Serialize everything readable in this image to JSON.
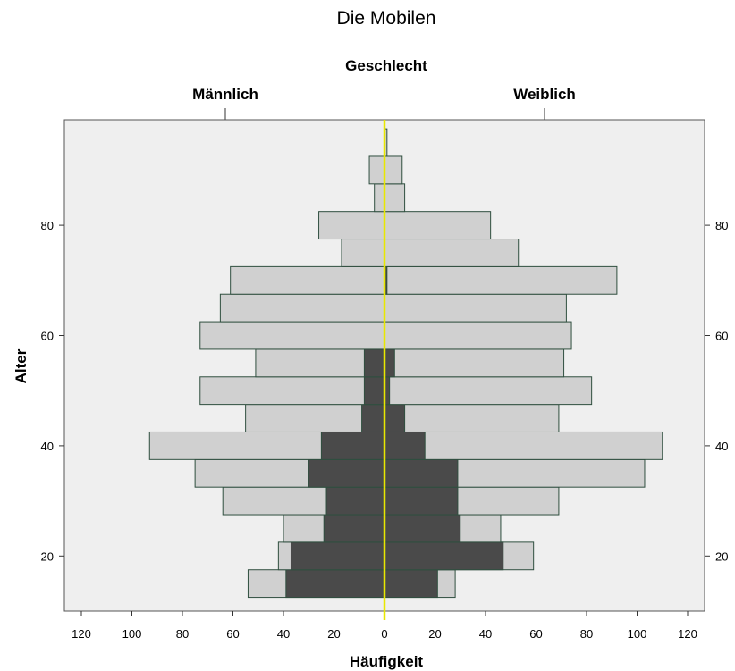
{
  "chart_data": {
    "type": "bar",
    "orientation": "horizontal-population-pyramid",
    "title": "Die Mobilen",
    "group_axis_label": "Geschlecht",
    "left_group": "Männlich",
    "right_group": "Weiblich",
    "xlabel": "Häufigkeit",
    "ylabel": "Alter",
    "x_ticks": [
      120,
      100,
      80,
      60,
      40,
      20,
      0,
      20,
      40,
      60,
      80,
      100,
      120
    ],
    "y_ticks": [
      20,
      40,
      60,
      80
    ],
    "x_range": [
      -120,
      120
    ],
    "y_range": [
      10,
      100
    ],
    "bin_width": 5,
    "colors": {
      "background": "#efefef",
      "outer_bar": "#d0d0d0",
      "inner_bar": "#4a4a4a",
      "bar_edge": "#2f4f3f",
      "center_line": "#e8e800"
    },
    "bins": [
      {
        "age_from": 12.5,
        "age_to": 17.5,
        "male_total": 54,
        "female_total": 28,
        "male_inner": 39,
        "female_inner": 21
      },
      {
        "age_from": 17.5,
        "age_to": 22.5,
        "male_total": 42,
        "female_total": 59,
        "male_inner": 37,
        "female_inner": 47
      },
      {
        "age_from": 22.5,
        "age_to": 27.5,
        "male_total": 40,
        "female_total": 46,
        "male_inner": 24,
        "female_inner": 30
      },
      {
        "age_from": 27.5,
        "age_to": 32.5,
        "male_total": 64,
        "female_total": 69,
        "male_inner": 23,
        "female_inner": 29
      },
      {
        "age_from": 32.5,
        "age_to": 37.5,
        "male_total": 75,
        "female_total": 103,
        "male_inner": 30,
        "female_inner": 29
      },
      {
        "age_from": 37.5,
        "age_to": 42.5,
        "male_total": 93,
        "female_total": 110,
        "male_inner": 25,
        "female_inner": 16
      },
      {
        "age_from": 42.5,
        "age_to": 47.5,
        "male_total": 55,
        "female_total": 69,
        "male_inner": 9,
        "female_inner": 8
      },
      {
        "age_from": 47.5,
        "age_to": 52.5,
        "male_total": 73,
        "female_total": 82,
        "male_inner": 8,
        "female_inner": 2
      },
      {
        "age_from": 52.5,
        "age_to": 57.5,
        "male_total": 51,
        "female_total": 71,
        "male_inner": 8,
        "female_inner": 4
      },
      {
        "age_from": 57.5,
        "age_to": 62.5,
        "male_total": 73,
        "female_total": 74,
        "male_inner": 0,
        "female_inner": 0
      },
      {
        "age_from": 62.5,
        "age_to": 67.5,
        "male_total": 65,
        "female_total": 72,
        "male_inner": 0,
        "female_inner": 0
      },
      {
        "age_from": 67.5,
        "age_to": 72.5,
        "male_total": 61,
        "female_total": 92,
        "male_inner": 0,
        "female_inner": 1
      },
      {
        "age_from": 72.5,
        "age_to": 77.5,
        "male_total": 17,
        "female_total": 53,
        "male_inner": 0,
        "female_inner": 0
      },
      {
        "age_from": 77.5,
        "age_to": 82.5,
        "male_total": 26,
        "female_total": 42,
        "male_inner": 0,
        "female_inner": 0
      },
      {
        "age_from": 82.5,
        "age_to": 87.5,
        "male_total": 4,
        "female_total": 8,
        "male_inner": 0,
        "female_inner": 0
      },
      {
        "age_from": 87.5,
        "age_to": 92.5,
        "male_total": 6,
        "female_total": 7,
        "male_inner": 0,
        "female_inner": 0
      },
      {
        "age_from": 92.5,
        "age_to": 97.5,
        "male_total": 0,
        "female_total": 1,
        "male_inner": 0,
        "female_inner": 0
      }
    ],
    "grid": false,
    "legend": "none"
  }
}
